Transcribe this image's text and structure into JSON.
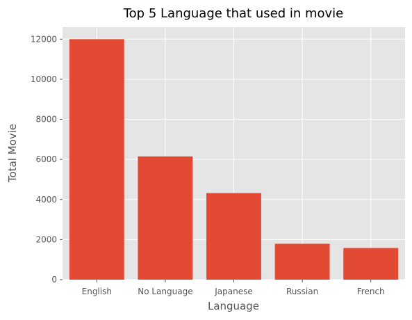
{
  "chart_data": {
    "type": "bar",
    "title": "Top 5 Language that used in movie",
    "xlabel": "Language",
    "ylabel": "Total Movie",
    "categories": [
      "English",
      "No Language",
      "Japanese",
      "Russian",
      "French"
    ],
    "values": [
      12000,
      6150,
      4320,
      1790,
      1580
    ],
    "ylim": [
      0,
      12600
    ],
    "yticks": [
      0,
      2000,
      4000,
      6000,
      8000,
      10000,
      12000
    ],
    "grid": true,
    "colors": {
      "bar": "#E24A33",
      "plot_bg": "#E5E5E5",
      "grid": "#FFFFFF",
      "text": "#555555"
    }
  }
}
